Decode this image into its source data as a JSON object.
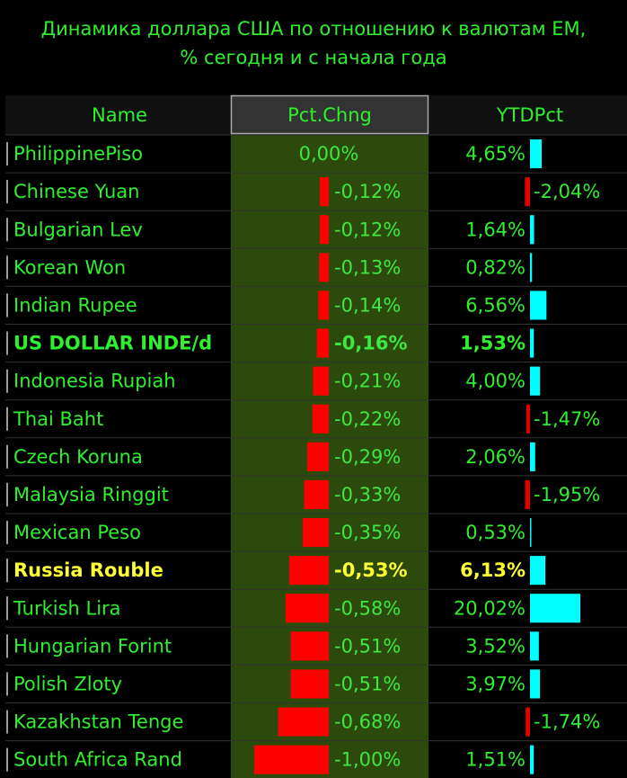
{
  "title": [
    "Динамика доллара США по отношению к валютам ЕМ,",
    "% сегодня и с начала года"
  ],
  "table": {
    "columns": [
      "Name",
      "Pct.Chng",
      "YTDPct"
    ],
    "text_color": "#2ef02e",
    "rows": [
      {
        "name": "PhilippinePiso",
        "pct": {
          "value": 0,
          "label": "0,00%"
        },
        "ytd": {
          "value": 4.65,
          "label": "4,65%"
        }
      },
      {
        "name": "Chinese Yuan",
        "pct": {
          "value": -0.12,
          "label": "-0,12%"
        },
        "ytd": {
          "value": -2.04,
          "label": "-2,04%"
        }
      },
      {
        "name": "Bulgarian Lev",
        "pct": {
          "value": -0.12,
          "label": "-0,12%"
        },
        "ytd": {
          "value": 1.64,
          "label": "1,64%"
        }
      },
      {
        "name": "Korean Won",
        "pct": {
          "value": -0.13,
          "label": "-0,13%"
        },
        "ytd": {
          "value": 0.82,
          "label": "0,82%"
        }
      },
      {
        "name": "Indian Rupee",
        "pct": {
          "value": -0.14,
          "label": "-0,14%"
        },
        "ytd": {
          "value": 6.56,
          "label": "6,56%"
        }
      },
      {
        "name": "US DOLLAR INDE/d",
        "pct": {
          "value": -0.16,
          "label": "-0,16%"
        },
        "ytd": {
          "value": 1.53,
          "label": "1,53%"
        },
        "bold": true
      },
      {
        "name": "Indonesia Rupiah",
        "pct": {
          "value": -0.21,
          "label": "-0,21%"
        },
        "ytd": {
          "value": 4.0,
          "label": "4,00%"
        }
      },
      {
        "name": "Thai Baht",
        "pct": {
          "value": -0.22,
          "label": "-0,22%"
        },
        "ytd": {
          "value": -1.47,
          "label": "-1,47%"
        }
      },
      {
        "name": "Czech Koruna",
        "pct": {
          "value": -0.29,
          "label": "-0,29%"
        },
        "ytd": {
          "value": 2.06,
          "label": "2,06%"
        }
      },
      {
        "name": "Malaysia Ringgit",
        "pct": {
          "value": -0.33,
          "label": "-0,33%"
        },
        "ytd": {
          "value": -1.95,
          "label": "-1,95%"
        }
      },
      {
        "name": "Mexican Peso",
        "pct": {
          "value": -0.35,
          "label": "-0,35%"
        },
        "ytd": {
          "value": 0.53,
          "label": "0,53%"
        }
      },
      {
        "name": "Russia Rouble",
        "pct": {
          "value": -0.53,
          "label": "-0,53%"
        },
        "ytd": {
          "value": 6.13,
          "label": "6,13%"
        },
        "bold": true,
        "color": "#ffff33"
      },
      {
        "name": "Turkish Lira",
        "pct": {
          "value": -0.58,
          "label": "-0,58%"
        },
        "ytd": {
          "value": 20.02,
          "label": "20,02%"
        }
      },
      {
        "name": "Hungarian Forint",
        "pct": {
          "value": -0.51,
          "label": "-0,51%"
        },
        "ytd": {
          "value": 3.52,
          "label": "3,52%"
        }
      },
      {
        "name": "Polish Zloty",
        "pct": {
          "value": -0.51,
          "label": "-0,51%"
        },
        "ytd": {
          "value": 3.97,
          "label": "3,97%"
        }
      },
      {
        "name": "Kazakhstan Tenge",
        "pct": {
          "value": -0.68,
          "label": "-0,68%"
        },
        "ytd": {
          "value": -1.74,
          "label": "-1,74%"
        }
      },
      {
        "name": "South Africa Rand",
        "pct": {
          "value": -1.0,
          "label": "-1,00%"
        },
        "ytd": {
          "value": 1.51,
          "label": "1,51%"
        }
      }
    ]
  }
}
